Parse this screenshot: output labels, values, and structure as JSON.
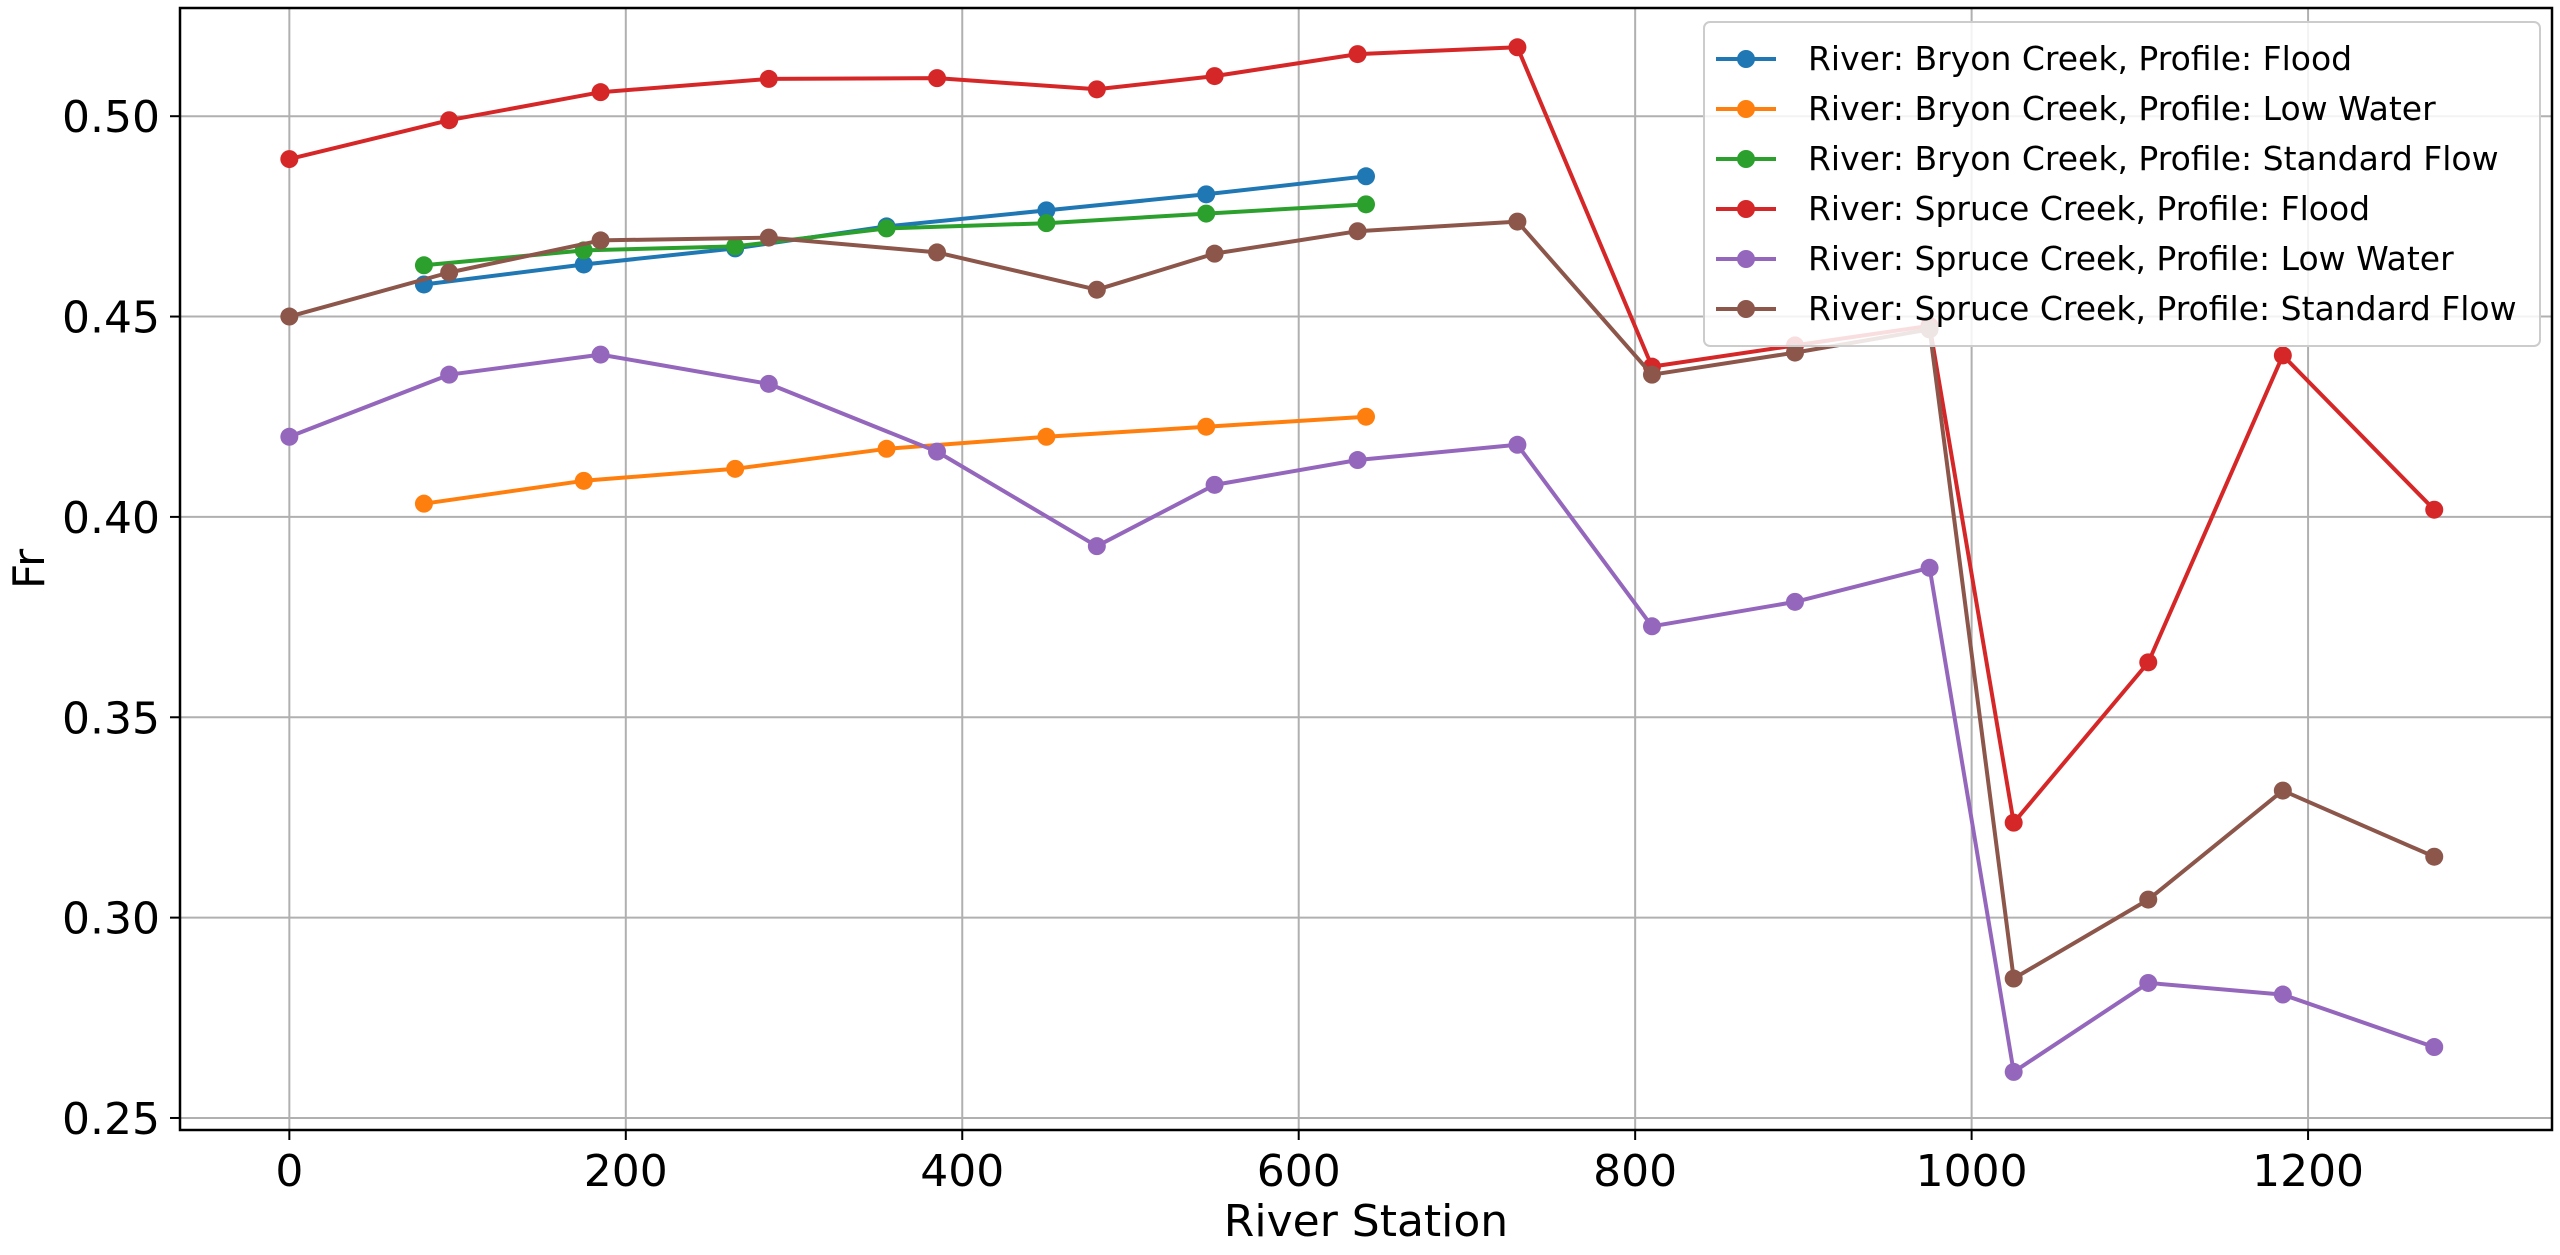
{
  "chart_data": {
    "type": "line",
    "title": "",
    "xlabel": "River Station",
    "ylabel": "Fr",
    "xlim": [
      -65,
      1345
    ],
    "ylim": [
      0.247,
      0.527
    ],
    "xticks": [
      0,
      200,
      400,
      600,
      800,
      1000,
      1200
    ],
    "yticks": [
      0.25,
      0.3,
      0.35,
      0.4,
      0.45,
      0.5
    ],
    "xtick_labels": [
      "0",
      "200",
      "400",
      "600",
      "800",
      "1000",
      "1200"
    ],
    "ytick_labels": [
      "0.25",
      "0.30",
      "0.35",
      "0.40",
      "0.45",
      "0.50"
    ],
    "grid": true,
    "legend_position": "upper right",
    "series": [
      {
        "name": "River: Bryon Creek, Profile: Flood",
        "color": "#1f77b4",
        "x": [
          80,
          175,
          265,
          355,
          450,
          545,
          640
        ],
        "y": [
          0.458,
          0.463,
          0.467,
          0.4725,
          0.4765,
          0.4805,
          0.485
        ]
      },
      {
        "name": "River: Bryon Creek, Profile: Low Water",
        "color": "#ff7f0e",
        "x": [
          80,
          175,
          265,
          355,
          450,
          545,
          640
        ],
        "y": [
          0.4033,
          0.409,
          0.412,
          0.417,
          0.42,
          0.4225,
          0.425
        ]
      },
      {
        "name": "River: Bryon Creek, Profile: Standard Flow",
        "color": "#2ca02c",
        "x": [
          80,
          175,
          265,
          355,
          450,
          545,
          640
        ],
        "y": [
          0.4628,
          0.4665,
          0.4675,
          0.472,
          0.4733,
          0.4757,
          0.478
        ]
      },
      {
        "name": "River: Spruce Creek, Profile: Flood",
        "color": "#d62728",
        "x": [
          0,
          95,
          185,
          285,
          385,
          480,
          550,
          635,
          730,
          810,
          895,
          975,
          1025,
          1105,
          1185,
          1275
        ],
        "y": [
          0.4893,
          0.499,
          0.506,
          0.5093,
          0.5095,
          0.5067,
          0.51,
          0.5155,
          0.5172,
          0.4375,
          0.4428,
          0.4477,
          0.3237,
          0.3637,
          0.4403,
          0.4018
        ]
      },
      {
        "name": "River: Spruce Creek, Profile: Low Water",
        "color": "#9467bd",
        "x": [
          0,
          95,
          185,
          285,
          385,
          480,
          550,
          635,
          730,
          810,
          895,
          975,
          1025,
          1105,
          1185,
          1275
        ],
        "y": [
          0.42,
          0.4355,
          0.4405,
          0.4332,
          0.4163,
          0.3927,
          0.408,
          0.4142,
          0.418,
          0.3727,
          0.3788,
          0.3873,
          0.2615,
          0.2837,
          0.2808,
          0.2677
        ]
      },
      {
        "name": "River: Spruce Creek, Profile: Standard Flow",
        "color": "#8c564b",
        "x": [
          0,
          95,
          185,
          285,
          385,
          480,
          550,
          635,
          730,
          810,
          895,
          975,
          1025,
          1105,
          1185,
          1275
        ],
        "y": [
          0.45,
          0.461,
          0.469,
          0.4697,
          0.466,
          0.4567,
          0.4657,
          0.4713,
          0.4737,
          0.4355,
          0.441,
          0.4468,
          0.2848,
          0.3045,
          0.3317,
          0.3152
        ]
      }
    ]
  }
}
